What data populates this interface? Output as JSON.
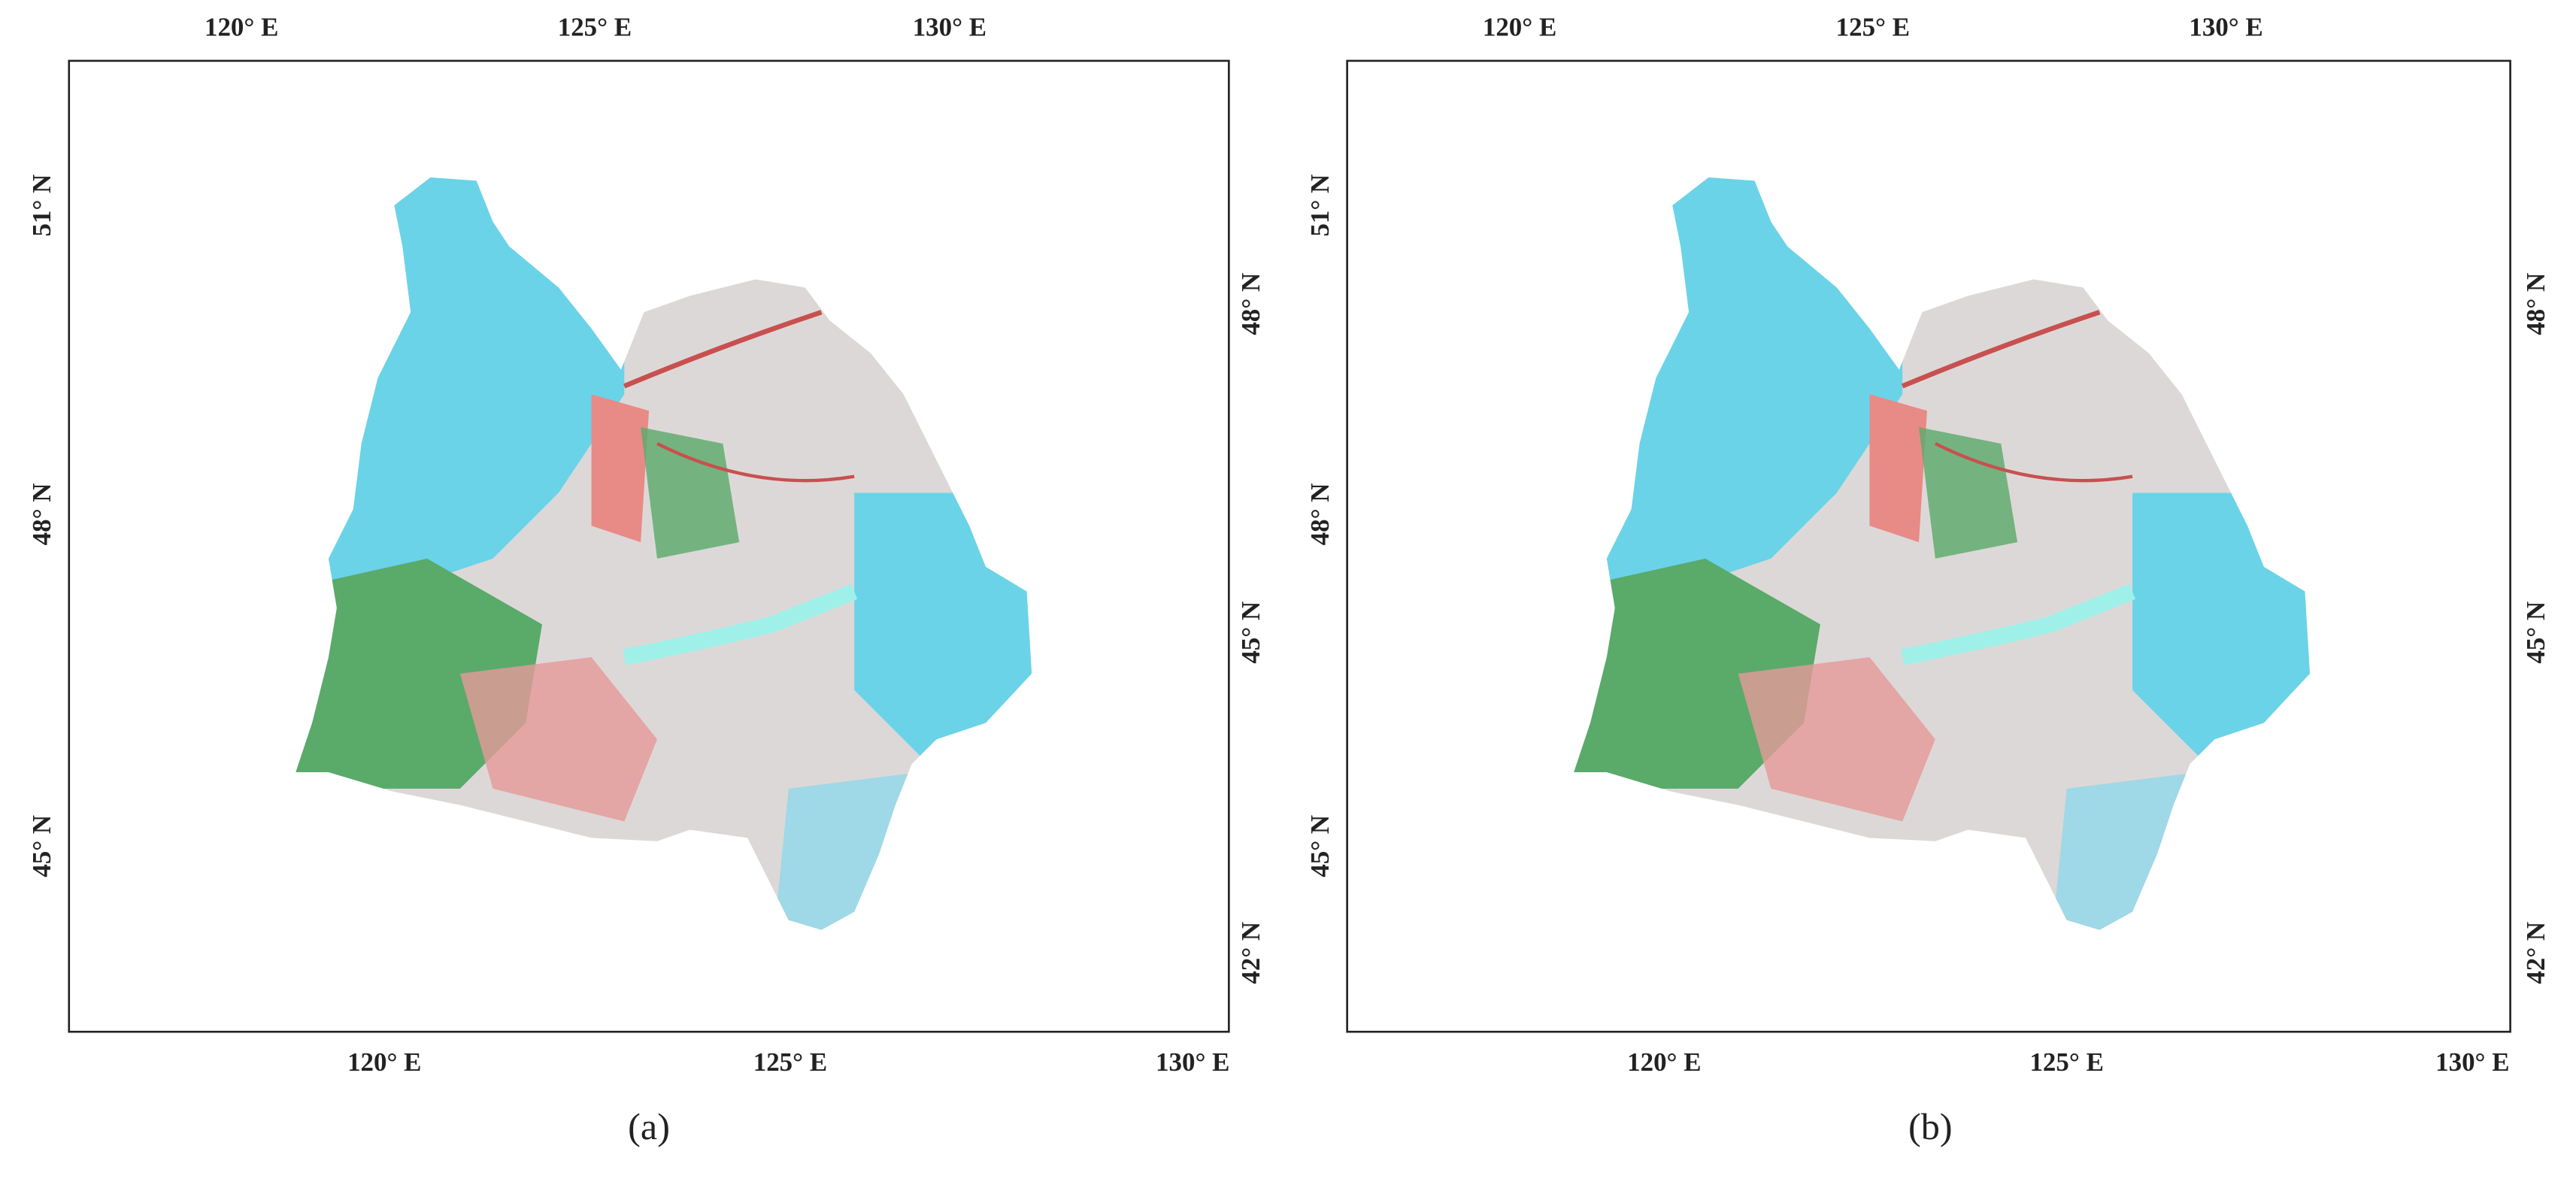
{
  "panels": [
    {
      "caption": "(a)",
      "top_ticks": [
        "120° E",
        "125° E",
        "130° E"
      ],
      "bottom_ticks": [
        "120° E",
        "125° E",
        "130° E"
      ],
      "left_ticks": [
        "51° N",
        "48° N",
        "45° N"
      ],
      "right_ticks": [
        "48° N",
        "45° N",
        "42° N"
      ]
    },
    {
      "caption": "(b)",
      "top_ticks": [
        "120° E",
        "125° E",
        "130° E"
      ],
      "bottom_ticks": [
        "120° E",
        "125° E",
        "130° E"
      ],
      "left_ticks": [
        "51° N",
        "48° N",
        "45° N"
      ],
      "right_ticks": [
        "48° N",
        "45° N",
        "42° N"
      ]
    }
  ]
}
